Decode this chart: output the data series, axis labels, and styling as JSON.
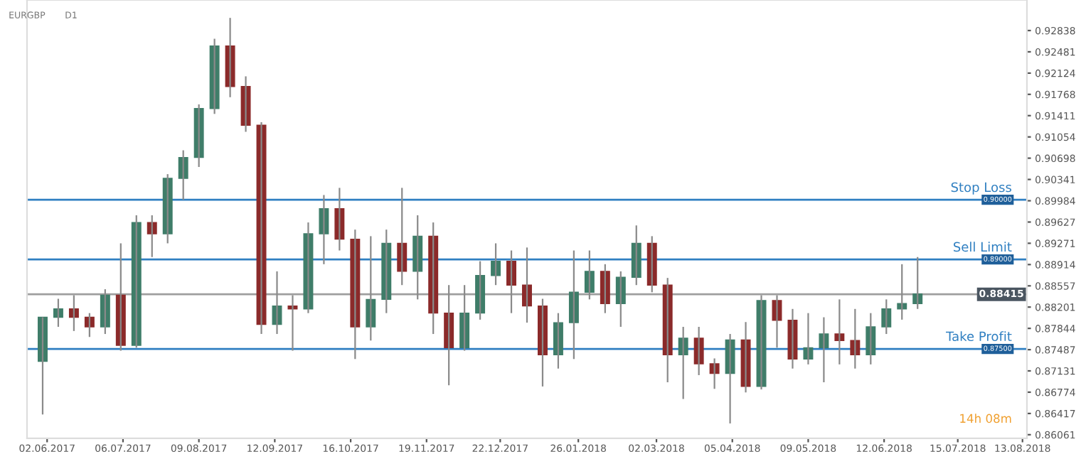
{
  "chart_data": {
    "type": "candlestick",
    "title": "EURGBP",
    "subtitle": "D1",
    "x": [
      "2017-05-31",
      "2017-06-07",
      "2017-06-14",
      "2017-06-21",
      "2017-06-28",
      "2017-07-05",
      "2017-07-12",
      "2017-07-19",
      "2017-07-26",
      "2017-08-02",
      "2017-08-09",
      "2017-08-16",
      "2017-08-23",
      "2017-08-30",
      "2017-09-06",
      "2017-09-13",
      "2017-09-20",
      "2017-09-27",
      "2017-10-04",
      "2017-10-11",
      "2017-10-18",
      "2017-10-25",
      "2017-11-01",
      "2017-11-08",
      "2017-11-15",
      "2017-11-22",
      "2017-11-29",
      "2017-12-06",
      "2017-12-13",
      "2017-12-20",
      "2017-12-27",
      "2018-01-03",
      "2018-01-10",
      "2018-01-17",
      "2018-01-24",
      "2018-01-31",
      "2018-02-07",
      "2018-02-14",
      "2018-02-21",
      "2018-02-28",
      "2018-03-07",
      "2018-03-14",
      "2018-03-21",
      "2018-03-28",
      "2018-04-04",
      "2018-04-11",
      "2018-04-18",
      "2018-04-25",
      "2018-05-02",
      "2018-05-09",
      "2018-05-16",
      "2018-05-23",
      "2018-05-30",
      "2018-06-06",
      "2018-06-13",
      "2018-06-20",
      "2018-06-27"
    ],
    "ohlc": [
      [
        0.8729,
        0.8803,
        0.864,
        0.8803
      ],
      [
        0.8803,
        0.8834,
        0.8787,
        0.8817
      ],
      [
        0.8817,
        0.884,
        0.878,
        0.8803
      ],
      [
        0.8803,
        0.881,
        0.877,
        0.8787
      ],
      [
        0.8787,
        0.885,
        0.8775,
        0.884
      ],
      [
        0.884,
        0.8927,
        0.8747,
        0.8756
      ],
      [
        0.8756,
        0.8974,
        0.8752,
        0.8962
      ],
      [
        0.8962,
        0.8974,
        0.8904,
        0.8943
      ],
      [
        0.8943,
        0.9043,
        0.8927,
        0.9036
      ],
      [
        0.9036,
        0.9083,
        0.9,
        0.9071
      ],
      [
        0.9071,
        0.916,
        0.9055,
        0.9153
      ],
      [
        0.9153,
        0.927,
        0.9144,
        0.9258
      ],
      [
        0.9258,
        0.9305,
        0.9172,
        0.919
      ],
      [
        0.919,
        0.9207,
        0.9114,
        0.9125
      ],
      [
        0.9125,
        0.913,
        0.8775,
        0.8791
      ],
      [
        0.8791,
        0.888,
        0.8775,
        0.8822
      ],
      [
        0.8822,
        0.884,
        0.8747,
        0.8817
      ],
      [
        0.8817,
        0.8962,
        0.881,
        0.8943
      ],
      [
        0.8943,
        0.9008,
        0.8892,
        0.8985
      ],
      [
        0.8985,
        0.902,
        0.8915,
        0.8934
      ],
      [
        0.8934,
        0.895,
        0.8733,
        0.8787
      ],
      [
        0.8787,
        0.8939,
        0.8764,
        0.8833
      ],
      [
        0.8833,
        0.895,
        0.881,
        0.8927
      ],
      [
        0.8927,
        0.902,
        0.8857,
        0.888
      ],
      [
        0.888,
        0.8974,
        0.8833,
        0.8939
      ],
      [
        0.8939,
        0.8962,
        0.8775,
        0.881
      ],
      [
        0.881,
        0.8857,
        0.8689,
        0.8752
      ],
      [
        0.8752,
        0.8857,
        0.8747,
        0.881
      ],
      [
        0.881,
        0.8897,
        0.8799,
        0.8873
      ],
      [
        0.8873,
        0.8927,
        0.8857,
        0.8897
      ],
      [
        0.8897,
        0.8915,
        0.881,
        0.8857
      ],
      [
        0.8857,
        0.892,
        0.8794,
        0.8822
      ],
      [
        0.8822,
        0.8834,
        0.8687,
        0.874
      ],
      [
        0.874,
        0.881,
        0.8717,
        0.8794
      ],
      [
        0.8794,
        0.8915,
        0.8733,
        0.8845
      ],
      [
        0.8845,
        0.8915,
        0.8833,
        0.888
      ],
      [
        0.888,
        0.8892,
        0.881,
        0.8826
      ],
      [
        0.8826,
        0.888,
        0.8787,
        0.887
      ],
      [
        0.887,
        0.8957,
        0.8857,
        0.8927
      ],
      [
        0.8927,
        0.8939,
        0.8845,
        0.8857
      ],
      [
        0.8857,
        0.8869,
        0.8694,
        0.874
      ],
      [
        0.874,
        0.8787,
        0.8666,
        0.8768
      ],
      [
        0.8768,
        0.8787,
        0.8706,
        0.8725
      ],
      [
        0.8725,
        0.8734,
        0.8683,
        0.8709
      ],
      [
        0.8709,
        0.8775,
        0.8625,
        0.8765
      ],
      [
        0.8765,
        0.8795,
        0.8677,
        0.8687
      ],
      [
        0.8687,
        0.884,
        0.8682,
        0.8831
      ],
      [
        0.8831,
        0.884,
        0.8752,
        0.8798
      ],
      [
        0.8798,
        0.8817,
        0.8717,
        0.8733
      ],
      [
        0.8733,
        0.881,
        0.8724,
        0.8752
      ],
      [
        0.8752,
        0.8803,
        0.8694,
        0.8775
      ],
      [
        0.8775,
        0.8833,
        0.8724,
        0.8764
      ],
      [
        0.8764,
        0.8817,
        0.8717,
        0.874
      ],
      [
        0.874,
        0.881,
        0.8724,
        0.8787
      ],
      [
        0.8787,
        0.8833,
        0.8775,
        0.8817
      ],
      [
        0.8817,
        0.8892,
        0.8799,
        0.8826
      ],
      [
        0.8826,
        0.8904,
        0.8817,
        0.8842
      ]
    ],
    "colors": [
      "#3f7d69",
      "#3f7d69",
      "#8b2a2a",
      "#8b2a2a",
      "#3f7d69",
      "#8b2a2a",
      "#3f7d69",
      "#8b2a2a",
      "#3f7d69",
      "#3f7d69",
      "#3f7d69",
      "#3f7d69",
      "#8b2a2a",
      "#8b2a2a",
      "#8b2a2a",
      "#3f7d69",
      "#8b2a2a",
      "#3f7d69",
      "#3f7d69",
      "#8b2a2a",
      "#8b2a2a",
      "#3f7d69",
      "#3f7d69",
      "#8b2a2a",
      "#3f7d69",
      "#8b2a2a",
      "#8b2a2a",
      "#3f7d69",
      "#3f7d69",
      "#3f7d69",
      "#8b2a2a",
      "#8b2a2a",
      "#8b2a2a",
      "#3f7d69",
      "#3f7d69",
      "#3f7d69",
      "#8b2a2a",
      "#3f7d69",
      "#3f7d69",
      "#8b2a2a",
      "#8b2a2a",
      "#3f7d69",
      "#8b2a2a",
      "#8b2a2a",
      "#3f7d69",
      "#8b2a2a",
      "#3f7d69",
      "#8b2a2a",
      "#8b2a2a",
      "#3f7d69",
      "#3f7d69",
      "#8b2a2a",
      "#8b2a2a",
      "#3f7d69",
      "#3f7d69",
      "#3f7d69",
      "#3f7d69"
    ],
    "xlim": [
      "2017-05-24",
      "2018-08-15"
    ],
    "xticks": [
      {
        "value": "2017-06-02",
        "label": "02.06.2017"
      },
      {
        "value": "2017-07-06",
        "label": "06.07.2017"
      },
      {
        "value": "2017-08-09",
        "label": "09.08.2017"
      },
      {
        "value": "2017-09-12",
        "label": "12.09.2017"
      },
      {
        "value": "2017-10-16",
        "label": "16.10.2017"
      },
      {
        "value": "2017-11-19",
        "label": "19.11.2017"
      },
      {
        "value": "2017-12-22",
        "label": "22.12.2017"
      },
      {
        "value": "2018-01-26",
        "label": "26.01.2018"
      },
      {
        "value": "2018-03-02",
        "label": "02.03.2018"
      },
      {
        "value": "2018-04-05",
        "label": "05.04.2018"
      },
      {
        "value": "2018-05-09",
        "label": "09.05.2018"
      },
      {
        "value": "2018-06-12",
        "label": "12.06.2018"
      },
      {
        "value": "2018-07-15",
        "label": "15.07.2018"
      },
      {
        "value": "2018-08-13",
        "label": "13.08.2018"
      }
    ],
    "ylim": [
      0.86,
      0.9335
    ],
    "yticks": [
      0.86061,
      0.86417,
      0.86774,
      0.87131,
      0.87487,
      0.87844,
      0.88201,
      0.88557,
      0.88914,
      0.89271,
      0.89627,
      0.89984,
      0.90341,
      0.90698,
      0.91054,
      0.91411,
      0.91768,
      0.92124,
      0.92481,
      0.92838
    ],
    "ref_lines": [
      {
        "axis": "y",
        "value": 0.9,
        "label": "Stop Loss",
        "color": "#2f7fc1"
      },
      {
        "axis": "y",
        "value": 0.89,
        "label": "Sell Limit",
        "color": "#2f7fc1"
      },
      {
        "axis": "y",
        "value": 0.875,
        "label": "Take Profit",
        "color": "#2f7fc1"
      },
      {
        "axis": "y",
        "value": 0.88415,
        "color": "#9e9e9e"
      }
    ],
    "annotations": [
      {
        "text": "0.90000",
        "y": 0.9
      },
      {
        "text": "0.89000",
        "y": 0.89
      },
      {
        "text": "0.87500",
        "y": 0.875
      },
      "0.88415",
      "14h 08m"
    ],
    "grid": false
  }
}
